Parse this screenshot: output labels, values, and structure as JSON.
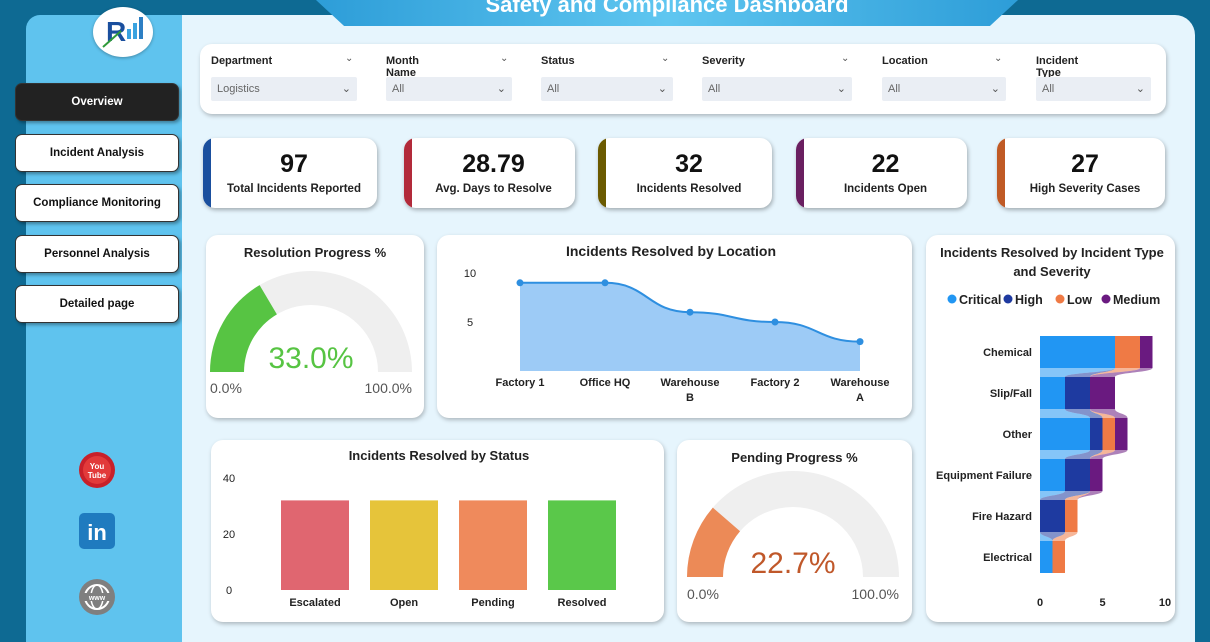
{
  "title": "Safety and Compliance Dashboard",
  "nav": [
    {
      "label": "Overview",
      "active": true
    },
    {
      "label": "Incident Analysis",
      "active": false
    },
    {
      "label": "Compliance Monitoring",
      "active": false
    },
    {
      "label": "Personnel Analysis",
      "active": false
    },
    {
      "label": "Detailed page",
      "active": false
    }
  ],
  "social": {
    "youtube_text": "You Tube",
    "linkedin_text": "in",
    "web_text": "www"
  },
  "filters": [
    {
      "label": "Department",
      "value": "Logistics"
    },
    {
      "label": "Month Name",
      "value": "All"
    },
    {
      "label": "Status",
      "value": "All"
    },
    {
      "label": "Severity",
      "value": "All"
    },
    {
      "label": "Location",
      "value": "All"
    },
    {
      "label": "Incident Type",
      "value": "All"
    }
  ],
  "kpis": [
    {
      "value": "97",
      "label": "Total Incidents Reported",
      "color": "#1a4f9e"
    },
    {
      "value": "28.79",
      "label": "Avg. Days to Resolve",
      "color": "#b22a3a"
    },
    {
      "value": "32",
      "label": "Incidents Resolved",
      "color": "#6b5a00"
    },
    {
      "value": "22",
      "label": "Incidents Open",
      "color": "#6a1f60"
    },
    {
      "value": "27",
      "label": "High Severity Cases",
      "color": "#c05a25"
    }
  ],
  "resolution_gauge": {
    "title": "Resolution Progress %",
    "value_text": "33.0%",
    "value": 0.33,
    "min": "0.0%",
    "max": "100.0%",
    "color": "#57c443"
  },
  "pending_gauge": {
    "title": "Pending Progress %",
    "value_text": "22.7%",
    "value": 0.227,
    "min": "0.0%",
    "max": "100.0%",
    "color": "#ec8a57"
  },
  "chart_data": [
    {
      "type": "area",
      "title": "Incidents Resolved by Location",
      "categories": [
        "Factory 1",
        "Office HQ",
        "Warehouse B",
        "Factory 2",
        "Warehouse A"
      ],
      "category_lines": [
        [
          "Factory 1"
        ],
        [
          "Office HQ"
        ],
        [
          "Warehouse",
          "B"
        ],
        [
          "Factory 2"
        ],
        [
          "Warehouse",
          "A"
        ]
      ],
      "values": [
        9,
        9,
        6,
        5,
        3
      ],
      "yticks": [
        10,
        5
      ],
      "ylim": [
        0,
        10
      ],
      "color": "#2e8fe0"
    },
    {
      "type": "bar",
      "title": "Incidents Resolved by Status",
      "categories": [
        "Escalated",
        "Open",
        "Pending",
        "Resolved"
      ],
      "values": [
        32,
        32,
        32,
        32
      ],
      "colors": [
        "#e06670",
        "#e6c43a",
        "#ef8a5c",
        "#5ac84a"
      ],
      "yticks": [
        40,
        20,
        0
      ],
      "ylim": [
        0,
        40
      ]
    },
    {
      "type": "bar",
      "orientation": "horizontal-stacked",
      "title_lines": [
        "Incidents Resolved by Incident Type",
        "and Severity"
      ],
      "legend": [
        {
          "name": "Critical",
          "color": "#2196f3"
        },
        {
          "name": "High",
          "color": "#1e3aa0"
        },
        {
          "name": "Low",
          "color": "#ef7a45"
        },
        {
          "name": "Medium",
          "color": "#6a1a80"
        }
      ],
      "categories": [
        "Chemical",
        "Slip/Fall",
        "Other",
        "Equipment Failure",
        "Fire Hazard",
        "Electrical"
      ],
      "series": [
        {
          "name": "Critical",
          "values": [
            6,
            2,
            4,
            2,
            0,
            1
          ]
        },
        {
          "name": "High",
          "values": [
            0,
            2,
            1,
            2,
            2,
            0
          ]
        },
        {
          "name": "Low",
          "values": [
            2,
            0,
            1,
            0,
            1,
            1
          ]
        },
        {
          "name": "Medium",
          "values": [
            1,
            2,
            1,
            1,
            0,
            0
          ]
        }
      ],
      "xticks": [
        0,
        5,
        10
      ],
      "xlim": [
        0,
        10
      ]
    }
  ]
}
